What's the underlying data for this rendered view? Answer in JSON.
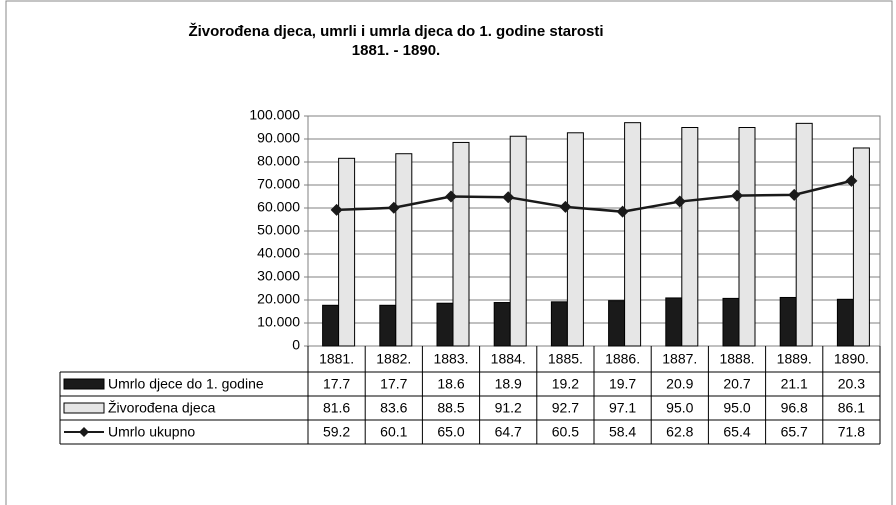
{
  "chart_data": {
    "type": "bar",
    "title": "Živorođena djeca, umrli i umrla djeca do 1. godine starosti",
    "subtitle": "1881. - 1890.",
    "categories": [
      "1881.",
      "1882.",
      "1883.",
      "1884.",
      "1885.",
      "1886.",
      "1887.",
      "1888.",
      "1889.",
      "1890."
    ],
    "series": [
      {
        "name": "Umrlo djece do 1. godine",
        "type": "bar",
        "color": "#1a1a1a",
        "values": [
          17700,
          17700,
          18600,
          18900,
          19200,
          19700,
          20900,
          20700,
          21100,
          20300
        ],
        "value_labels": [
          "17.7",
          "17.7",
          "18.6",
          "18.9",
          "19.2",
          "19.7",
          "20.9",
          "20.7",
          "21.1",
          "20.3"
        ]
      },
      {
        "name": "Živorođena djeca",
        "type": "bar",
        "color": "#e6e6e6",
        "values": [
          81600,
          83600,
          88500,
          91200,
          92700,
          97100,
          95000,
          95000,
          96800,
          86100
        ],
        "value_labels": [
          "81.6",
          "83.6",
          "88.5",
          "91.2",
          "92.7",
          "97.1",
          "95.0",
          "95.0",
          "96.8",
          "86.1"
        ]
      },
      {
        "name": "Umrlo ukupno",
        "type": "line",
        "color": "#1a1a1a",
        "values": [
          59200,
          60100,
          65000,
          64700,
          60500,
          58400,
          62800,
          65400,
          65700,
          71800
        ],
        "value_labels": [
          "59.2",
          "60.1",
          "65.0",
          "64.7",
          "60.5",
          "58.4",
          "62.8",
          "65.4",
          "65.7",
          "71.8"
        ]
      }
    ],
    "ylim": [
      0,
      100000
    ],
    "yticks": [
      0,
      {
        "value": 10000,
        "label": "10.000"
      },
      {
        "value": 20000,
        "label": "20.000"
      },
      {
        "value": 30000,
        "label": "30.000"
      },
      {
        "value": 40000,
        "label": "40.000"
      },
      {
        "value": 50000,
        "label": "50.000"
      },
      {
        "value": 60000,
        "label": "60.000"
      },
      {
        "value": 70000,
        "label": "70.000"
      },
      {
        "value": 80000,
        "label": "80.000"
      },
      {
        "value": 90000,
        "label": "90.000"
      },
      {
        "value": 100000,
        "label": "100.000"
      }
    ],
    "grid": true
  }
}
